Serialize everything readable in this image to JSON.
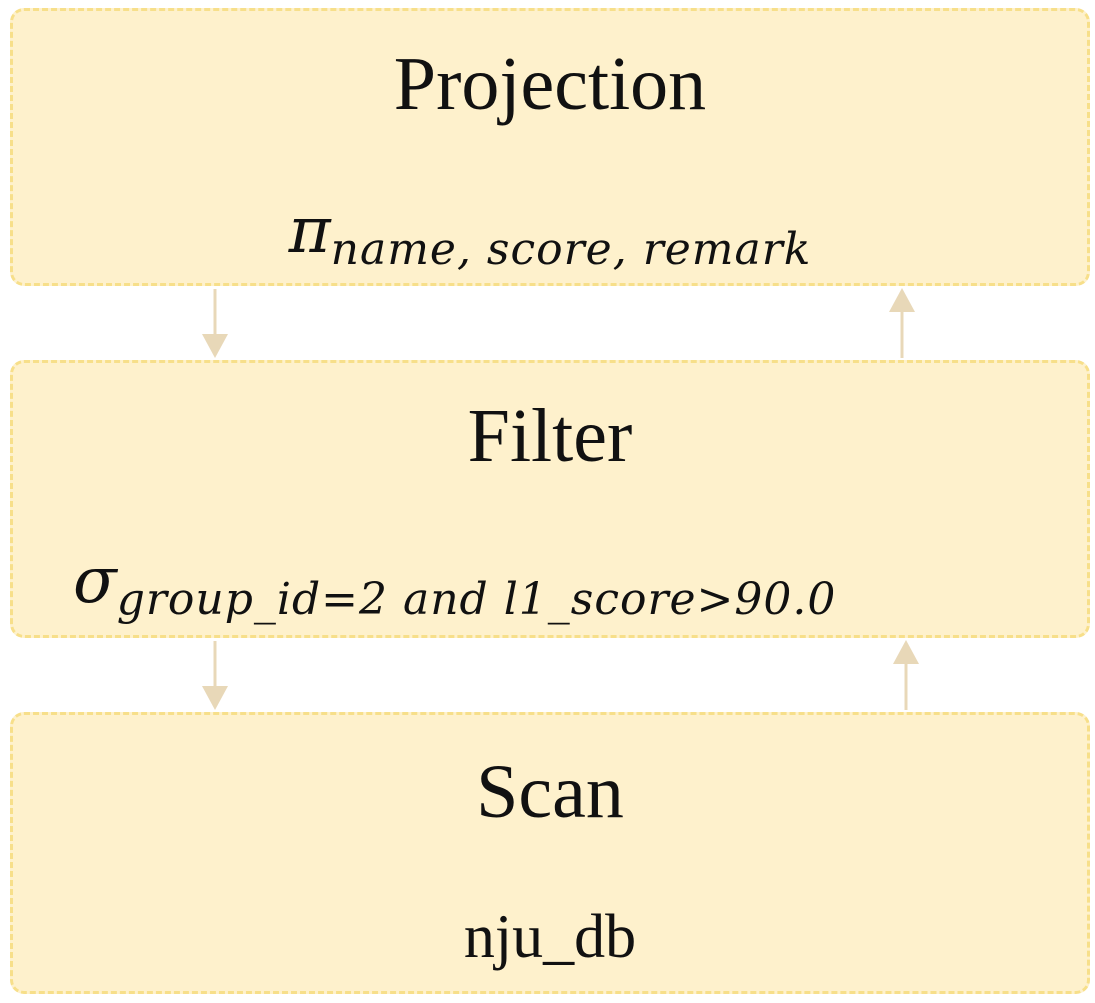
{
  "nodes": {
    "projection": {
      "title": "Projection",
      "symbol": "π",
      "subscript": "name, score, remark"
    },
    "filter": {
      "title": "Filter",
      "symbol": "σ",
      "subscript": "group_id=2 and l1_score>90.0"
    },
    "scan": {
      "title": "Scan",
      "detail": "nju_db"
    }
  },
  "colors": {
    "node_fill": "#fef1cc",
    "node_border": "#f7df8a",
    "arrow": "#e8d8b8"
  }
}
